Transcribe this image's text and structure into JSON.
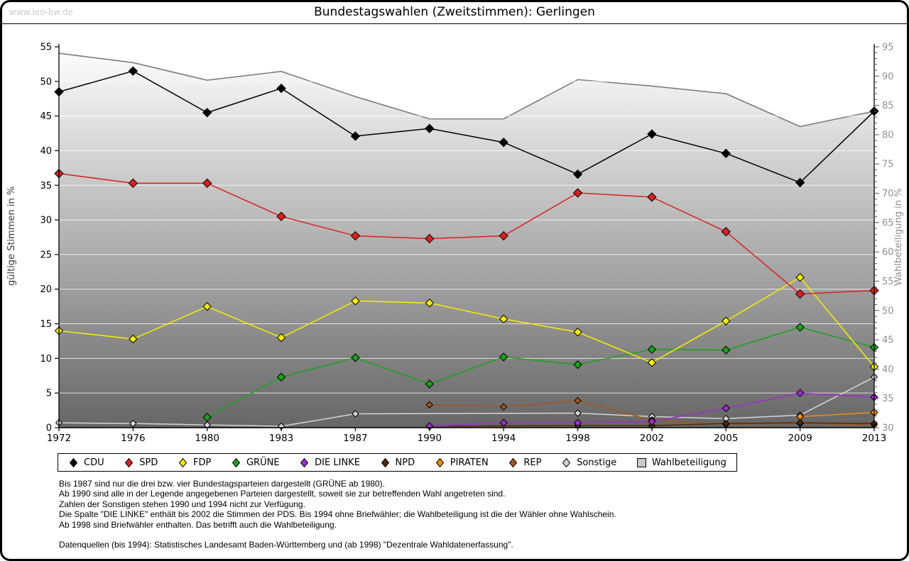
{
  "header": {
    "watermark": "www.leo-bw.de",
    "title": "Bundestagswahlen (Zweitstimmen): Gerlingen"
  },
  "chart_data": {
    "type": "line",
    "title": "Bundestagswahlen (Zweitstimmen): Gerlingen",
    "categories": [
      "1972",
      "1976",
      "1980",
      "1983",
      "1987",
      "1990",
      "1994",
      "1998",
      "2002",
      "2005",
      "2009",
      "2013"
    ],
    "left_axis": {
      "label": "gültige Stimmen in %",
      "min": 0,
      "max": 55,
      "tick_step": 5
    },
    "right_axis": {
      "label": "Wahlbeteiligung in %",
      "min": 30,
      "max": 95,
      "tick_step": 5,
      "minor_tick_step": 1
    },
    "grid": true,
    "legend_position": "bottom",
    "series": [
      {
        "name": "CDU",
        "color": "#000000",
        "axis": "left",
        "marker": "diamond",
        "msize": 6,
        "values": [
          48.5,
          51.5,
          45.5,
          49.0,
          42.1,
          43.2,
          41.2,
          36.6,
          42.4,
          39.6,
          35.4,
          45.7
        ]
      },
      {
        "name": "SPD",
        "color": "#d92121",
        "axis": "left",
        "marker": "diamond",
        "msize": 6,
        "values": [
          36.7,
          35.3,
          35.3,
          30.5,
          27.7,
          27.3,
          27.7,
          33.9,
          33.3,
          28.3,
          19.3,
          19.8
        ]
      },
      {
        "name": "FDP",
        "color": "#f7ef00",
        "axis": "left",
        "marker": "diamond",
        "msize": 5.5,
        "values": [
          14.0,
          12.8,
          17.5,
          13.0,
          18.3,
          18.0,
          15.7,
          13.8,
          9.4,
          15.4,
          21.7,
          8.8
        ]
      },
      {
        "name": "GRÜNE",
        "color": "#1ba11b",
        "axis": "left",
        "marker": "diamond",
        "msize": 5.5,
        "values": [
          null,
          null,
          1.5,
          7.3,
          10.1,
          6.3,
          10.2,
          9.1,
          11.3,
          11.2,
          14.5,
          11.6
        ]
      },
      {
        "name": "DIE LINKE",
        "color": "#a02cd0",
        "axis": "left",
        "marker": "diamond",
        "msize": 5,
        "values": [
          null,
          null,
          null,
          null,
          null,
          0.2,
          0.7,
          0.7,
          0.9,
          2.8,
          5.0,
          4.4
        ]
      },
      {
        "name": "NPD",
        "color": "#4f2c08",
        "axis": "left",
        "marker": "diamond",
        "msize": 4.5,
        "values": [
          null,
          null,
          null,
          null,
          null,
          0.2,
          null,
          0.3,
          0.3,
          0.6,
          0.7,
          0.6
        ]
      },
      {
        "name": "PIRATEN",
        "color": "#ef8c12",
        "axis": "left",
        "marker": "diamond",
        "msize": 5,
        "values": [
          null,
          null,
          null,
          null,
          null,
          null,
          null,
          null,
          null,
          null,
          1.6,
          2.2
        ]
      },
      {
        "name": "REP",
        "color": "#a4561e",
        "axis": "left",
        "marker": "diamond",
        "msize": 4.5,
        "values": [
          null,
          null,
          null,
          null,
          null,
          3.3,
          3.0,
          3.9,
          1.1,
          0.5,
          0.6,
          0.4
        ]
      },
      {
        "name": "Sonstige",
        "color": "#d6d6d6",
        "axis": "left",
        "marker": "diamond",
        "msize": 4.5,
        "values": [
          0.7,
          0.6,
          0.4,
          0.2,
          2.0,
          null,
          null,
          2.1,
          1.6,
          1.3,
          1.8,
          7.3
        ]
      },
      {
        "name": "Wahlbeteiligung",
        "type": "area",
        "axis": "right",
        "color": "#7d7d7d",
        "fill_top": "#ffffff",
        "fill_bottom": "#666666",
        "marker": "square",
        "values": [
          93.9,
          92.3,
          89.3,
          90.8,
          86.5,
          82.7,
          82.7,
          89.4,
          88.3,
          87.0,
          81.4,
          84.0
        ]
      }
    ]
  },
  "notes": [
    "Bis 1987 sind nur die drei bzw. vier Bundestagsparteien dargestellt (GRÜNE ab 1980).",
    "Ab 1990 sind alle in der Legende angegebenen Parteien dargestellt, soweit sie zur betreffenden Wahl angetreten sind.",
    "Zahlen der Sonstigen stehen 1990 und 1994 nicht zur Verfügung.",
    "Die Spalte \"DIE LINKE\" enthält bis 2002 die Stimmen der PDS. Bis 1994 ohne Briefwähler; die Wahlbeteiligung ist die der Wähler ohne Wahlschein.",
    "Ab 1998 sind Briefwähler enthalten. Das betrifft auch die Wahlbeteiligung.",
    "",
    "Datenquellen (bis 1994): Statistisches Landesamt Baden-Württemberg und (ab 1998) \"Dezentrale Wahldatenerfassung\"."
  ]
}
